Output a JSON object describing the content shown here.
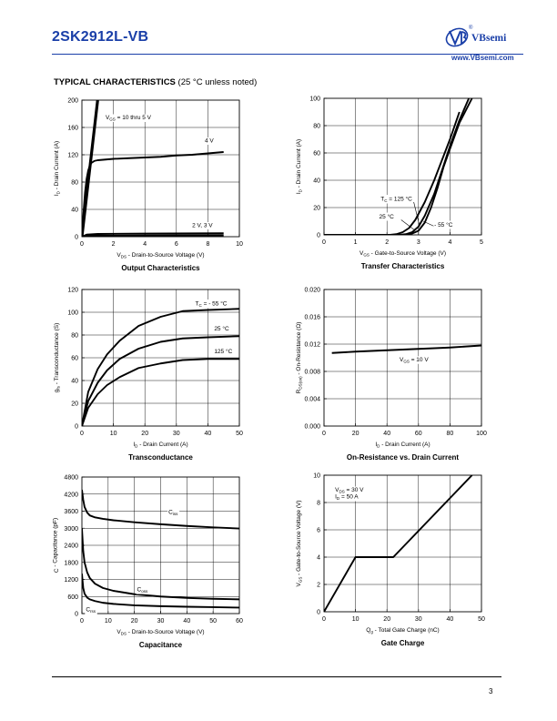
{
  "header": {
    "part_number": "2SK2912L-VB",
    "brand_name": "VBsemi",
    "brand_url": "www.VBsemi.com",
    "registered_mark": "®"
  },
  "section": {
    "title_bold": "TYPICAL CHARACTERISTICS",
    "title_rest": " (25 °C unless noted)"
  },
  "footer": {
    "page_number": "3"
  },
  "chart_data": [
    {
      "id": "output",
      "type": "line",
      "title": "Output Characteristics",
      "xlabel_parts": [
        "V",
        "DS",
        " - Drain-to-Source Voltage (V)"
      ],
      "ylabel_parts": [
        "I",
        "D",
        " - Drain Current (A)"
      ],
      "xlim": [
        0,
        10
      ],
      "ylim": [
        0,
        200
      ],
      "xticks": [
        0,
        2,
        4,
        6,
        8,
        10
      ],
      "yticks": [
        0,
        40,
        80,
        120,
        160,
        200
      ],
      "grid": true,
      "series": [
        {
          "name": "VGS = 10 thru 5 V",
          "x": [
            0,
            0.2,
            0.4,
            0.6,
            0.8,
            1.0
          ],
          "y": [
            0,
            40,
            80,
            120,
            160,
            200
          ],
          "bold": true
        },
        {
          "name": "4 V",
          "x": [
            0,
            0.1,
            0.2,
            0.3,
            0.4,
            0.5,
            0.6,
            0.8,
            1.0,
            1.5,
            2,
            3,
            4,
            5,
            6,
            7,
            8,
            9
          ],
          "y": [
            0,
            35,
            65,
            85,
            97,
            104,
            108,
            111,
            112,
            113,
            114,
            115,
            116,
            117,
            119,
            120,
            122,
            124
          ]
        },
        {
          "name": "3 V",
          "x": [
            0,
            0.3,
            1,
            4,
            9
          ],
          "y": [
            0,
            3,
            4,
            4.5,
            5
          ]
        },
        {
          "name": "2 V",
          "x": [
            0,
            0.3,
            1,
            4,
            9
          ],
          "y": [
            0,
            1,
            1.5,
            1.8,
            2
          ]
        }
      ],
      "annotations": [
        {
          "parts": [
            "V",
            "GS",
            " = 10 thru 5 V"
          ],
          "x": 1.5,
          "y": 172
        },
        {
          "parts": [
            "4 V"
          ],
          "x": 7.8,
          "y": 138
        },
        {
          "parts": [
            "2 V, 3 V"
          ],
          "x": 7.0,
          "y": 14
        }
      ]
    },
    {
      "id": "transfer",
      "type": "line",
      "title": "Transfer Characteristics",
      "xlabel_parts": [
        "V",
        "GS",
        " - Gate-to-Source Voltage (V)"
      ],
      "ylabel_parts": [
        "I",
        "D",
        " - Drain Current (A)"
      ],
      "xlim": [
        0,
        5
      ],
      "ylim": [
        0,
        100
      ],
      "xticks": [
        0,
        1,
        2,
        3,
        4,
        5
      ],
      "yticks": [
        0,
        20,
        40,
        60,
        80,
        100
      ],
      "grid": true,
      "series": [
        {
          "name": "TC = 125 °C",
          "x": [
            0,
            2.1,
            2.3,
            2.5,
            2.7,
            2.9,
            3.2,
            3.5,
            3.8,
            4.0,
            4.3
          ],
          "y": [
            0,
            0,
            0.5,
            2,
            5,
            11,
            24,
            40,
            58,
            70,
            90
          ]
        },
        {
          "name": "25 °C",
          "x": [
            0,
            2.4,
            2.6,
            2.8,
            3.0,
            3.2,
            3.5,
            3.8,
            4.0,
            4.3,
            4.6
          ],
          "y": [
            0,
            0,
            0.5,
            2,
            6,
            14,
            30,
            51,
            65,
            84,
            100
          ]
        },
        {
          "name": "- 55 °C",
          "x": [
            0,
            2.6,
            2.8,
            3.0,
            3.2,
            3.4,
            3.6,
            3.8,
            4.0,
            4.3,
            4.7
          ],
          "y": [
            0,
            0,
            1,
            3,
            9,
            20,
            34,
            50,
            63,
            82,
            100
          ]
        }
      ],
      "annotations": [
        {
          "parts": [
            "T",
            "C",
            " = 125 °C"
          ],
          "x": 1.8,
          "y": 25
        },
        {
          "parts": [
            "25 °C"
          ],
          "x": 1.75,
          "y": 12
        },
        {
          "parts": [
            "- 55 °C"
          ],
          "x": 3.5,
          "y": 6
        }
      ]
    },
    {
      "id": "transconductance",
      "type": "line",
      "title": "Transconductance",
      "xlabel_parts": [
        "I",
        "D",
        " - Drain Current (A)"
      ],
      "ylabel_parts": [
        "g",
        "fs",
        " - Transconductance (S)"
      ],
      "xlim": [
        0,
        50
      ],
      "ylim": [
        0,
        120
      ],
      "xticks": [
        0,
        10,
        20,
        30,
        40,
        50
      ],
      "yticks": [
        0,
        20,
        40,
        60,
        80,
        100,
        120
      ],
      "grid": true,
      "series": [
        {
          "name": "TC = - 55 °C",
          "x": [
            0,
            2,
            5,
            8,
            12,
            18,
            25,
            32,
            40,
            50
          ],
          "y": [
            0,
            30,
            50,
            63,
            75,
            88,
            96,
            101,
            102,
            103
          ]
        },
        {
          "name": "25 °C",
          "x": [
            0,
            2,
            5,
            8,
            12,
            18,
            25,
            32,
            40,
            50
          ],
          "y": [
            0,
            22,
            38,
            49,
            59,
            68,
            74,
            77,
            78,
            79
          ]
        },
        {
          "name": "125 °C",
          "x": [
            0,
            2,
            5,
            8,
            12,
            18,
            25,
            32,
            40,
            50
          ],
          "y": [
            0,
            16,
            28,
            36,
            43,
            51,
            55,
            58,
            59,
            59
          ]
        }
      ],
      "annotations": [
        {
          "parts": [
            "T",
            "C",
            " = - 55 °C"
          ],
          "x": 36,
          "y": 106
        },
        {
          "parts": [
            "25 °C"
          ],
          "x": 42,
          "y": 84
        },
        {
          "parts": [
            "125 °C"
          ],
          "x": 42,
          "y": 64
        }
      ]
    },
    {
      "id": "on_resistance",
      "type": "line",
      "title": "On-Resistance vs. Drain Current",
      "xlabel_parts": [
        "I",
        "D",
        " - Drain Current (A)"
      ],
      "ylabel_parts": [
        "R",
        "DS(on)",
        " - On-Resistance (Ω)"
      ],
      "xlim": [
        0,
        100
      ],
      "ylim": [
        0,
        0.02
      ],
      "xticks": [
        0,
        20,
        40,
        60,
        80,
        100
      ],
      "yticks": [
        0,
        0.004,
        0.008,
        0.012,
        0.016,
        0.02
      ],
      "yticklabels": [
        "0.000",
        "0.004",
        "0.008",
        "0.012",
        "0.016",
        "0.020"
      ],
      "grid": true,
      "series": [
        {
          "name": "VGS = 10 V",
          "x": [
            5,
            20,
            40,
            60,
            80,
            100
          ],
          "y": [
            0.0107,
            0.0109,
            0.0111,
            0.0113,
            0.0115,
            0.0118
          ]
        }
      ],
      "annotations": [
        {
          "parts": [
            "V",
            "GS",
            " = 10 V"
          ],
          "x": 48,
          "y": 0.0095
        }
      ]
    },
    {
      "id": "capacitance",
      "type": "line",
      "title": "Capacitance",
      "xlabel_parts": [
        "V",
        "DS",
        " - Drain-to-Source Voltage (V)"
      ],
      "ylabel_parts": [
        "C",
        "",
        " - Capacitance (pF)"
      ],
      "xlim": [
        0,
        60
      ],
      "ylim": [
        0,
        4800
      ],
      "xticks": [
        0,
        10,
        20,
        30,
        40,
        50,
        60
      ],
      "yticks": [
        0,
        600,
        1200,
        1800,
        2400,
        3000,
        3600,
        4200,
        4800
      ],
      "grid": true,
      "series": [
        {
          "name": "Ciss",
          "x": [
            0,
            0.5,
            1,
            2,
            3,
            5,
            8,
            12,
            20,
            30,
            40,
            50,
            60
          ],
          "y": [
            4350,
            4000,
            3750,
            3550,
            3450,
            3380,
            3330,
            3280,
            3210,
            3140,
            3080,
            3030,
            2990
          ]
        },
        {
          "name": "Coss",
          "x": [
            0,
            0.5,
            1,
            2,
            3,
            5,
            8,
            12,
            20,
            30,
            40,
            50,
            60
          ],
          "y": [
            3000,
            2200,
            1800,
            1450,
            1250,
            1050,
            900,
            800,
            680,
            600,
            550,
            520,
            500
          ]
        },
        {
          "name": "Crss",
          "x": [
            0,
            0.5,
            1,
            2,
            3,
            5,
            8,
            12,
            20,
            30,
            40,
            50,
            60
          ],
          "y": [
            1400,
            900,
            700,
            560,
            500,
            440,
            380,
            340,
            290,
            260,
            240,
            225,
            210
          ]
        }
      ],
      "annotations": [
        {
          "parts": [
            "C",
            "iss",
            ""
          ],
          "x": 33,
          "y": 3500
        },
        {
          "parts": [
            "C",
            "oss",
            ""
          ],
          "x": 21,
          "y": 780
        },
        {
          "parts": [
            "C",
            "rss",
            ""
          ],
          "x": 1.5,
          "y": 80
        }
      ]
    },
    {
      "id": "gate_charge",
      "type": "line",
      "title": "Gate Charge",
      "xlabel_parts": [
        "Q",
        "g",
        " - Total Gate Charge (nC)"
      ],
      "ylabel_parts": [
        "V",
        "GS",
        " - Gate-to-Source Voltage (V)"
      ],
      "xlim": [
        0,
        50
      ],
      "ylim": [
        0,
        10
      ],
      "xticks": [
        0,
        10,
        20,
        30,
        40,
        50
      ],
      "yticks": [
        0,
        2,
        4,
        6,
        8,
        10
      ],
      "grid": true,
      "series": [
        {
          "name": "VDS = 30 V, ID = 50 A",
          "x": [
            0,
            10,
            22,
            47
          ],
          "y": [
            0,
            4,
            4,
            10
          ]
        }
      ],
      "annotations": [
        {
          "parts": [
            "V",
            "DS",
            " = 30 V"
          ],
          "x": 3.5,
          "y": 8.8
        },
        {
          "parts": [
            "I",
            "D",
            " = 50 A"
          ],
          "x": 3.5,
          "y": 8.3
        }
      ]
    }
  ]
}
